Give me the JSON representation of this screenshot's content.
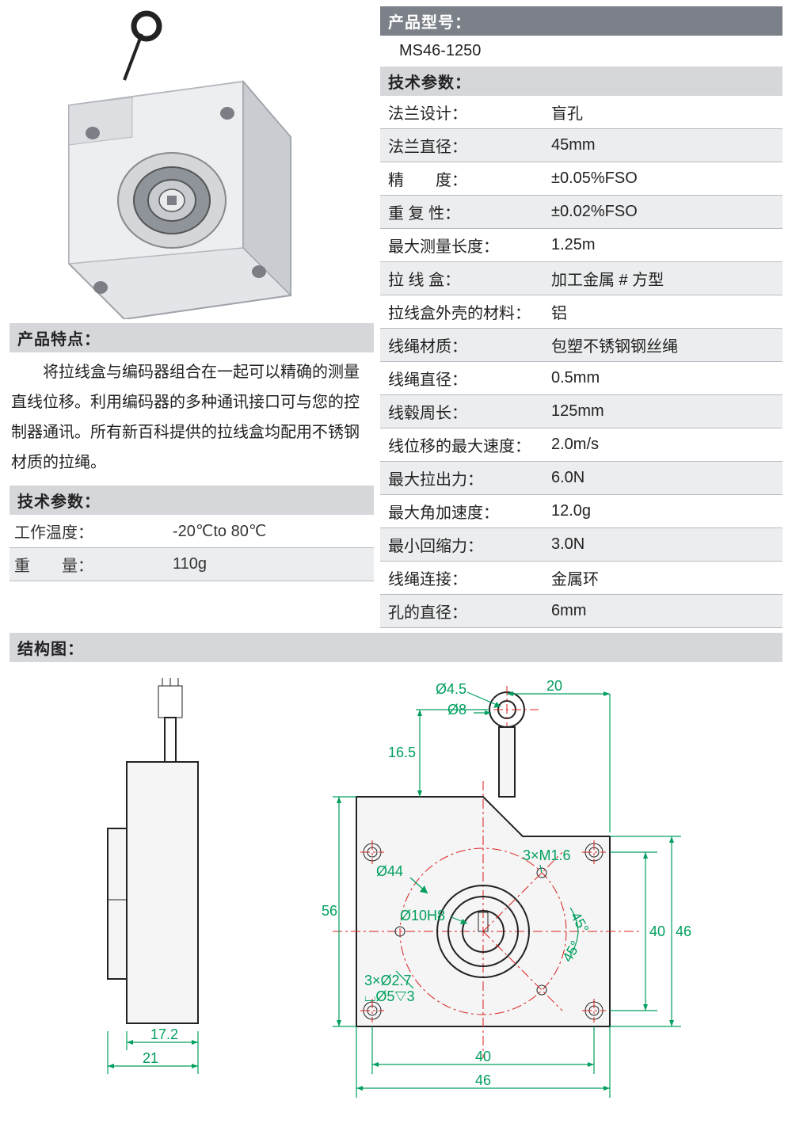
{
  "left": {
    "features_header": "产品特点：",
    "features_text": "将拉线盒与编码器组合在一起可以精确的测量直线位移。利用编码器的多种通讯接口可与您的控制器通讯。所有新百科提供的拉线盒均配用不锈钢材质的拉绳。",
    "tech_header": "技术参数：",
    "rows": [
      {
        "label": "工作温度：",
        "value": "-20℃to 80℃",
        "alt": false
      },
      {
        "label": "重　　量：",
        "value": "110g",
        "alt": true
      }
    ]
  },
  "right": {
    "model_header": "产品型号：",
    "model_value": "MS46-1250",
    "tech_header": "技术参数：",
    "rows": [
      {
        "label": "法兰设计：",
        "value": "盲孔",
        "alt": false
      },
      {
        "label": "法兰直径：",
        "value": "45mm",
        "alt": true
      },
      {
        "label": "精　　度：",
        "value": "±0.05%FSO",
        "alt": false
      },
      {
        "label": "重 复 性：",
        "value": "±0.02%FSO",
        "alt": true
      },
      {
        "label": "最大测量长度：",
        "value": "1.25m",
        "alt": false
      },
      {
        "label": "拉 线 盒：",
        "value": "加工金属 # 方型",
        "alt": true
      },
      {
        "label": "拉线盒外壳的材料：",
        "value": "铝",
        "alt": false
      },
      {
        "label": "线绳材质：",
        "value": "包塑不锈钢钢丝绳",
        "alt": true
      },
      {
        "label": "线绳直径：",
        "value": "0.5mm",
        "alt": false
      },
      {
        "label": "线毂周长：",
        "value": "125mm",
        "alt": true
      },
      {
        "label": "线位移的最大速度：",
        "value": "2.0m/s",
        "alt": false
      },
      {
        "label": "最大拉出力：",
        "value": "6.0N",
        "alt": true
      },
      {
        "label": "最大角加速度：",
        "value": "12.0g",
        "alt": false
      },
      {
        "label": "最小回缩力：",
        "value": "3.0N",
        "alt": true
      },
      {
        "label": "线绳连接：",
        "value": "金属环",
        "alt": false
      },
      {
        "label": "孔的直径：",
        "value": "6mm",
        "alt": true
      }
    ]
  },
  "structure_header": "结构图：",
  "diagram": {
    "side": {
      "dims": {
        "d1": "17.2",
        "d2": "21"
      }
    },
    "front": {
      "dims": {
        "d_hole": "Ø4.5",
        "d_ring": "Ø8",
        "top_off": "20",
        "ring_h": "16.5",
        "big_circle": "Ø44",
        "thread": "3×M1.6",
        "bore": "Ø10H8",
        "ang1": "45°",
        "ang2": "45°",
        "small_mount": "3×Ø2.7",
        "csink": "⌴Ø5▽3",
        "body_h": "56",
        "pitch_v": "40",
        "overall_v": "46",
        "pitch_h": "40",
        "overall_h": "46"
      }
    }
  },
  "colors": {
    "header_gray": "#7c8088",
    "section_gray": "#d5d7db",
    "row_alt": "#ecedef",
    "dim_green": "#009f5d",
    "center_red": "#d92020"
  }
}
